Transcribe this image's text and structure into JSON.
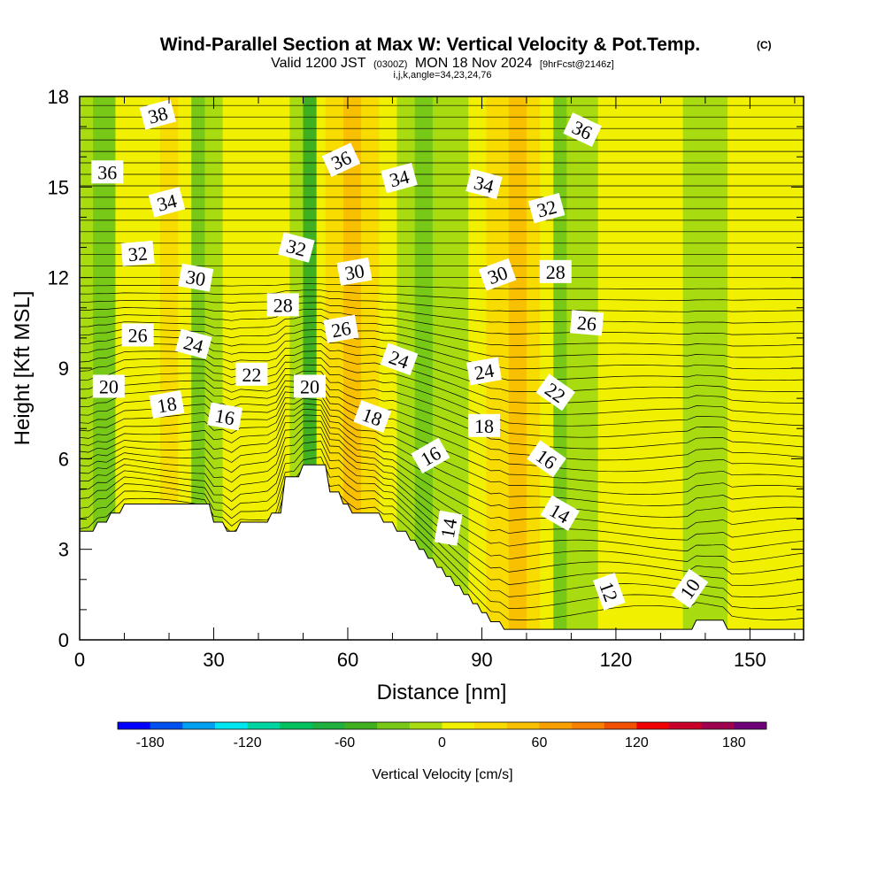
{
  "header": {
    "title": "Wind-Parallel Section at Max W: Vertical Velocity & Pot.Temp.",
    "copyright": "(C)",
    "valid_prefix": "Valid 1200 JST",
    "valid_z": "(0300Z)",
    "valid_date": "MON 18 Nov 2024",
    "forecast": "[9hrFcst@2146z]",
    "indices": "i,j,k,angle=34,23,24,76"
  },
  "chart_data": {
    "type": "heatmap",
    "title": "Wind-Parallel Section at Max W: Vertical Velocity & Pot.Temp.",
    "xlabel": "Distance [nm]",
    "ylabel": "Height [Kft MSL]",
    "xlim": [
      0,
      162
    ],
    "ylim": [
      0,
      18
    ],
    "xticks": [
      0,
      30,
      60,
      90,
      120,
      150
    ],
    "yticks": [
      0,
      3,
      6,
      9,
      12,
      15,
      18
    ],
    "colorbar": {
      "label": "Vertical Velocity [cm/s]",
      "ticks": [
        -180,
        -120,
        -60,
        0,
        60,
        120,
        180
      ],
      "bins": [
        -200,
        -180,
        -160,
        -140,
        -120,
        -100,
        -80,
        -60,
        -40,
        -20,
        0,
        20,
        40,
        60,
        80,
        100,
        120,
        140,
        160,
        180,
        200
      ],
      "colors": [
        "#0000ff",
        "#0050f0",
        "#00a0f0",
        "#00e6f0",
        "#00d4a0",
        "#00c060",
        "#20b040",
        "#40b020",
        "#78c818",
        "#a8dc10",
        "#f0f000",
        "#f8dc00",
        "#f8c000",
        "#f8a000",
        "#f88000",
        "#f05000",
        "#f00000",
        "#c80028",
        "#a00050",
        "#6e0078"
      ]
    },
    "vertical_velocity_bands": [
      {
        "x": 0,
        "w": -10
      },
      {
        "x": 3,
        "w": -35
      },
      {
        "x": 8,
        "w": 0
      },
      {
        "x": 13,
        "w": 10
      },
      {
        "x": 18,
        "w": 30
      },
      {
        "x": 22,
        "w": 10
      },
      {
        "x": 25,
        "w": -25
      },
      {
        "x": 28,
        "w": -10
      },
      {
        "x": 32,
        "w": 15
      },
      {
        "x": 37,
        "w": 10
      },
      {
        "x": 40,
        "w": 15
      },
      {
        "x": 44,
        "w": 5
      },
      {
        "x": 47,
        "w": -10
      },
      {
        "x": 50,
        "w": -45
      },
      {
        "x": 53,
        "w": 0
      },
      {
        "x": 55,
        "w": 30
      },
      {
        "x": 59,
        "w": 50
      },
      {
        "x": 63,
        "w": 30
      },
      {
        "x": 67,
        "w": 10
      },
      {
        "x": 71,
        "w": -15
      },
      {
        "x": 75,
        "w": -30
      },
      {
        "x": 79,
        "w": -20
      },
      {
        "x": 83,
        "w": -5
      },
      {
        "x": 87,
        "w": 15
      },
      {
        "x": 91,
        "w": 35
      },
      {
        "x": 96,
        "w": 45
      },
      {
        "x": 100,
        "w": 35
      },
      {
        "x": 103,
        "w": 10
      },
      {
        "x": 106,
        "w": -35
      },
      {
        "x": 109,
        "w": -20
      },
      {
        "x": 112,
        "w": -5
      },
      {
        "x": 116,
        "w": 5
      },
      {
        "x": 120,
        "w": 10
      },
      {
        "x": 125,
        "w": 15
      },
      {
        "x": 130,
        "w": 5
      },
      {
        "x": 135,
        "w": -5
      },
      {
        "x": 140,
        "w": -10
      },
      {
        "x": 145,
        "w": 5
      },
      {
        "x": 150,
        "w": 10
      },
      {
        "x": 155,
        "w": 5
      },
      {
        "x": 162,
        "w": 0
      }
    ],
    "terrain": [
      {
        "x": 0,
        "h": 3.6
      },
      {
        "x": 3,
        "h": 3.6
      },
      {
        "x": 4,
        "h": 3.9
      },
      {
        "x": 6,
        "h": 3.9
      },
      {
        "x": 7,
        "h": 4.2
      },
      {
        "x": 9,
        "h": 4.2
      },
      {
        "x": 10,
        "h": 4.5
      },
      {
        "x": 29,
        "h": 4.5
      },
      {
        "x": 30,
        "h": 3.9
      },
      {
        "x": 32,
        "h": 3.9
      },
      {
        "x": 33,
        "h": 3.6
      },
      {
        "x": 35,
        "h": 3.6
      },
      {
        "x": 36,
        "h": 3.9
      },
      {
        "x": 42,
        "h": 3.9
      },
      {
        "x": 43,
        "h": 4.2
      },
      {
        "x": 45,
        "h": 4.2
      },
      {
        "x": 46,
        "h": 5.4
      },
      {
        "x": 49,
        "h": 5.4
      },
      {
        "x": 50,
        "h": 5.8
      },
      {
        "x": 55,
        "h": 5.8
      },
      {
        "x": 56,
        "h": 4.9
      },
      {
        "x": 58,
        "h": 4.9
      },
      {
        "x": 59,
        "h": 4.5
      },
      {
        "x": 60,
        "h": 4.5
      },
      {
        "x": 61,
        "h": 4.2
      },
      {
        "x": 67,
        "h": 4.2
      },
      {
        "x": 68,
        "h": 3.9
      },
      {
        "x": 70,
        "h": 3.9
      },
      {
        "x": 71,
        "h": 3.6
      },
      {
        "x": 73,
        "h": 3.6
      },
      {
        "x": 74,
        "h": 3.3
      },
      {
        "x": 75,
        "h": 3.3
      },
      {
        "x": 76,
        "h": 3.0
      },
      {
        "x": 77,
        "h": 3.0
      },
      {
        "x": 78,
        "h": 2.7
      },
      {
        "x": 79,
        "h": 2.7
      },
      {
        "x": 80,
        "h": 2.4
      },
      {
        "x": 81,
        "h": 2.4
      },
      {
        "x": 82,
        "h": 2.1
      },
      {
        "x": 83,
        "h": 2.1
      },
      {
        "x": 84,
        "h": 1.8
      },
      {
        "x": 85,
        "h": 1.8
      },
      {
        "x": 86,
        "h": 1.5
      },
      {
        "x": 87,
        "h": 1.5
      },
      {
        "x": 88,
        "h": 1.2
      },
      {
        "x": 89,
        "h": 1.2
      },
      {
        "x": 90,
        "h": 0.9
      },
      {
        "x": 91,
        "h": 0.9
      },
      {
        "x": 92,
        "h": 0.6
      },
      {
        "x": 94,
        "h": 0.6
      },
      {
        "x": 95,
        "h": 0.35
      },
      {
        "x": 137,
        "h": 0.35
      },
      {
        "x": 138,
        "h": 0.65
      },
      {
        "x": 144,
        "h": 0.65
      },
      {
        "x": 145,
        "h": 0.35
      },
      {
        "x": 162,
        "h": 0.35
      }
    ],
    "theta_contour_labels": [
      {
        "text": "38",
        "x": 17.5,
        "y": 17.4,
        "angle": -15
      },
      {
        "text": "36",
        "x": 6.2,
        "y": 15.5,
        "angle": 0
      },
      {
        "text": "36",
        "x": 58.5,
        "y": 15.9,
        "angle": -25
      },
      {
        "text": "36",
        "x": 112.5,
        "y": 16.9,
        "angle": 25
      },
      {
        "text": "34",
        "x": 19.5,
        "y": 14.5,
        "angle": -15
      },
      {
        "text": "34",
        "x": 71.5,
        "y": 15.3,
        "angle": -15
      },
      {
        "text": "34",
        "x": 90.5,
        "y": 15.1,
        "angle": 15
      },
      {
        "text": "32",
        "x": 13,
        "y": 12.8,
        "angle": -5
      },
      {
        "text": "32",
        "x": 48.5,
        "y": 13.0,
        "angle": 15
      },
      {
        "text": "32",
        "x": 104.5,
        "y": 14.3,
        "angle": -15
      },
      {
        "text": "30",
        "x": 26,
        "y": 12.0,
        "angle": 10
      },
      {
        "text": "30",
        "x": 61.5,
        "y": 12.2,
        "angle": -10
      },
      {
        "text": "30",
        "x": 93.5,
        "y": 12.1,
        "angle": -20
      },
      {
        "text": "28",
        "x": 45.5,
        "y": 11.1,
        "angle": 0
      },
      {
        "text": "28",
        "x": 106.5,
        "y": 12.2,
        "angle": 0
      },
      {
        "text": "26",
        "x": 13,
        "y": 10.1,
        "angle": 0
      },
      {
        "text": "26",
        "x": 58.5,
        "y": 10.3,
        "angle": -10
      },
      {
        "text": "26",
        "x": 113.5,
        "y": 10.5,
        "angle": 5
      },
      {
        "text": "24",
        "x": 25.5,
        "y": 9.8,
        "angle": 15
      },
      {
        "text": "24",
        "x": 71.5,
        "y": 9.3,
        "angle": 20
      },
      {
        "text": "24",
        "x": 90.5,
        "y": 8.9,
        "angle": -10
      },
      {
        "text": "22",
        "x": 38.5,
        "y": 8.8,
        "angle": 0
      },
      {
        "text": "22",
        "x": 106.5,
        "y": 8.2,
        "angle": 35
      },
      {
        "text": "20",
        "x": 6.5,
        "y": 8.4,
        "angle": 0
      },
      {
        "text": "20",
        "x": 51.5,
        "y": 8.4,
        "angle": 0
      },
      {
        "text": "18",
        "x": 19.5,
        "y": 7.8,
        "angle": -10
      },
      {
        "text": "18",
        "x": 65.5,
        "y": 7.4,
        "angle": 20
      },
      {
        "text": "18",
        "x": 90.5,
        "y": 7.1,
        "angle": 0
      },
      {
        "text": "16",
        "x": 32.5,
        "y": 7.4,
        "angle": 10
      },
      {
        "text": "16",
        "x": 78.5,
        "y": 6.1,
        "angle": -30
      },
      {
        "text": "16",
        "x": 104.5,
        "y": 6.0,
        "angle": 35
      },
      {
        "text": "14",
        "x": 82.5,
        "y": 3.7,
        "angle": -80
      },
      {
        "text": "14",
        "x": 107.5,
        "y": 4.2,
        "angle": 30
      },
      {
        "text": "12",
        "x": 118.5,
        "y": 1.6,
        "angle": 70
      },
      {
        "text": "10",
        "x": 136.5,
        "y": 1.7,
        "angle": -55
      }
    ]
  }
}
